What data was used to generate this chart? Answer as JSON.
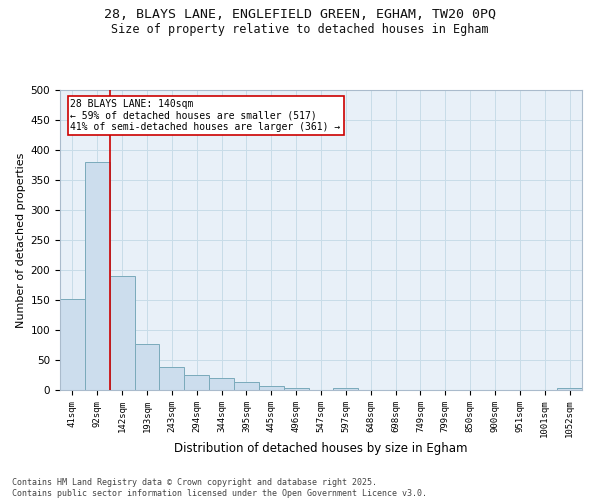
{
  "title_line1": "28, BLAYS LANE, ENGLEFIELD GREEN, EGHAM, TW20 0PQ",
  "title_line2": "Size of property relative to detached houses in Egham",
  "xlabel": "Distribution of detached houses by size in Egham",
  "ylabel": "Number of detached properties",
  "bar_color": "#ccdded",
  "bar_edge_color": "#7aaabb",
  "categories": [
    "41sqm",
    "92sqm",
    "142sqm",
    "193sqm",
    "243sqm",
    "294sqm",
    "344sqm",
    "395sqm",
    "445sqm",
    "496sqm",
    "547sqm",
    "597sqm",
    "648sqm",
    "698sqm",
    "749sqm",
    "799sqm",
    "850sqm",
    "900sqm",
    "951sqm",
    "1001sqm",
    "1052sqm"
  ],
  "values": [
    152,
    380,
    190,
    76,
    39,
    25,
    20,
    14,
    6,
    3,
    0,
    4,
    0,
    0,
    0,
    0,
    0,
    0,
    0,
    0,
    3
  ],
  "ylim": [
    0,
    500
  ],
  "yticks": [
    0,
    50,
    100,
    150,
    200,
    250,
    300,
    350,
    400,
    450,
    500
  ],
  "vline_color": "#cc0000",
  "vline_x_index": 2,
  "annotation_text": "28 BLAYS LANE: 140sqm\n← 59% of detached houses are smaller (517)\n41% of semi-detached houses are larger (361) →",
  "annotation_box_color": "#ffffff",
  "annotation_box_edgecolor": "#cc0000",
  "grid_color": "#c8dce8",
  "bg_color": "#e8f0f8",
  "footer_line1": "Contains HM Land Registry data © Crown copyright and database right 2025.",
  "footer_line2": "Contains public sector information licensed under the Open Government Licence v3.0."
}
